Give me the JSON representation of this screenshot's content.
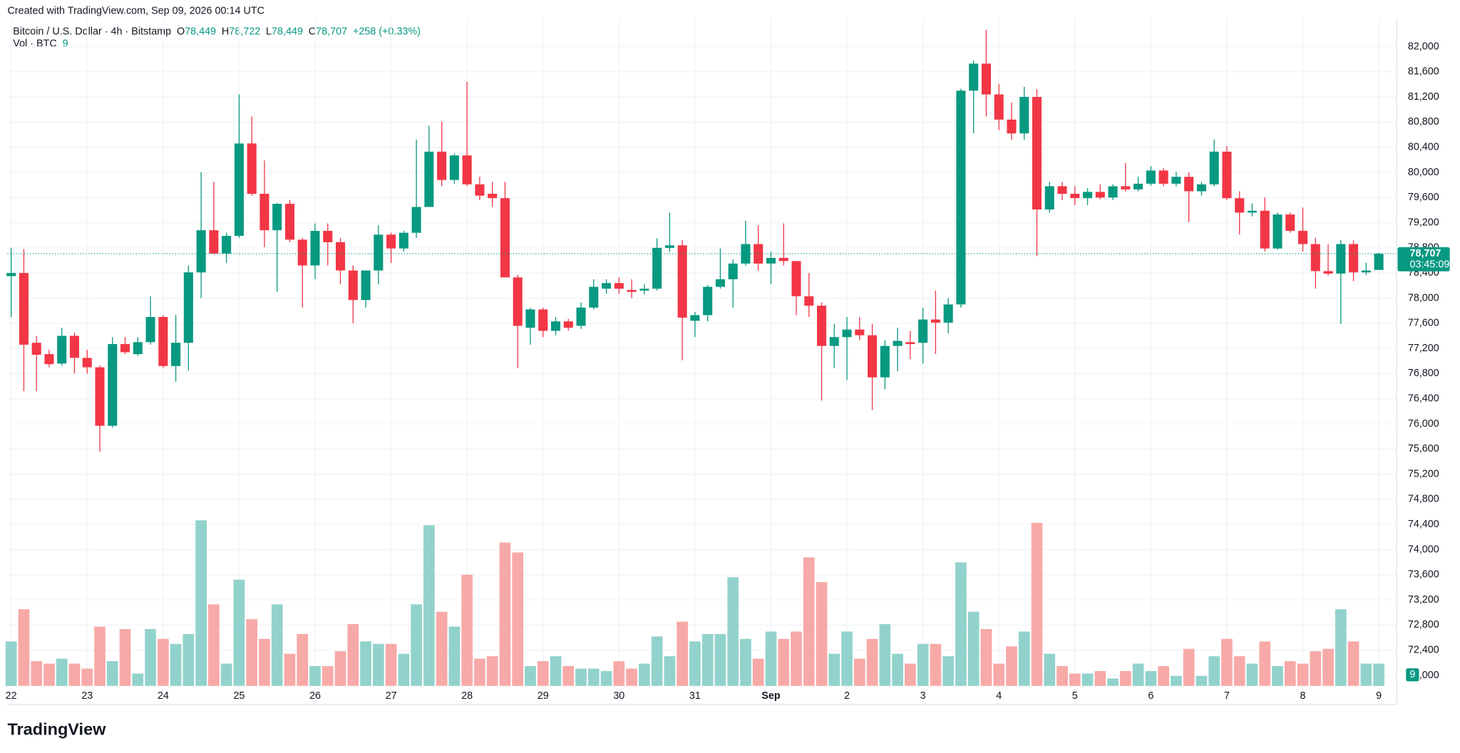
{
  "meta": {
    "created": "Created with TradingView.com, Sep 09, 2026 00:14 UTC",
    "brand": "TradingView"
  },
  "chart_data": {
    "type": "candlestick",
    "title": "Bitcoin / U.S. Dollar · 4h · Bitstamp",
    "ohlc": [
      {
        "key": "O",
        "value": "78,449"
      },
      {
        "key": "H",
        "value": "78,722"
      },
      {
        "key": "L",
        "value": "78,449"
      },
      {
        "key": "C",
        "value": "78,707"
      }
    ],
    "change": "+258 (+0.33%)",
    "volume_title": "Vol · BTC",
    "last_label": "78,707",
    "countdown": "03:45:09",
    "up_color": "#089981",
    "down_color": "#f23645",
    "vol_up_color": "#92d2cc",
    "vol_down_color": "#f7a9a7",
    "categories": [
      "22",
      null,
      null,
      null,
      null,
      null,
      "23",
      null,
      null,
      null,
      null,
      null,
      "24",
      null,
      null,
      null,
      null,
      null,
      "25",
      null,
      null,
      null,
      null,
      null,
      "26",
      null,
      null,
      null,
      null,
      null,
      "27",
      null,
      null,
      null,
      null,
      null,
      "28",
      null,
      null,
      null,
      null,
      null,
      "29",
      null,
      null,
      null,
      null,
      null,
      "30",
      null,
      null,
      null,
      null,
      null,
      "31",
      null,
      null,
      null,
      null,
      null,
      "Sep",
      null,
      null,
      null,
      null,
      null,
      "2",
      null,
      null,
      null,
      null,
      null,
      "3",
      null,
      null,
      null,
      null,
      null,
      "4",
      null,
      null,
      null,
      null,
      null,
      "5",
      null,
      null,
      null,
      null,
      null,
      "6",
      null,
      null,
      null,
      null,
      null,
      "7",
      null,
      null,
      null,
      null,
      null,
      "8",
      null,
      null,
      null,
      null,
      null,
      "9"
    ],
    "open": [
      78350,
      78400,
      77290,
      77110,
      76960,
      77400,
      77050,
      76900,
      75970,
      77270,
      77110,
      77300,
      77700,
      76920,
      77290,
      78410,
      79080,
      78710,
      78990,
      80460,
      79660,
      79080,
      79500,
      78930,
      78520,
      79070,
      78890,
      78440,
      77970,
      78440,
      79010,
      78790,
      79040,
      79450,
      80330,
      79880,
      80270,
      79810,
      79660,
      79590,
      78330,
      77530,
      77820,
      77480,
      77630,
      77560,
      77850,
      78150,
      78240,
      78130,
      78120,
      78150,
      78800,
      78840,
      77640,
      77730,
      78180,
      78300,
      78550,
      78860,
      78550,
      78640,
      78590,
      78030,
      77880,
      77240,
      77380,
      77500,
      77410,
      76740,
      77240,
      77300,
      77290,
      77660,
      77610,
      77900,
      81300,
      81730,
      81240,
      80840,
      80620,
      81200,
      79410,
      79780,
      79660,
      79590,
      79690,
      79600,
      79780,
      79730,
      79820,
      80030,
      79820,
      79930,
      79700,
      79810,
      80330,
      79590,
      79360,
      79390,
      78790,
      79330,
      79070,
      78860,
      78430,
      78390,
      78860,
      78410,
      78449
    ],
    "high": [
      78800,
      78780,
      77400,
      77180,
      77530,
      77450,
      77180,
      76930,
      77380,
      77380,
      77380,
      78030,
      77730,
      77730,
      78520,
      80000,
      79850,
      79040,
      81240,
      80890,
      80190,
      79510,
      79560,
      78960,
      79190,
      79190,
      78960,
      78520,
      78440,
      79160,
      79040,
      79070,
      80520,
      80740,
      80810,
      80300,
      81440,
      79930,
      79850,
      79850,
      78370,
      77850,
      77850,
      77700,
      77670,
      77930,
      78300,
      78300,
      78330,
      78300,
      78220,
      78950,
      79360,
      78920,
      77780,
      78210,
      78790,
      78620,
      79230,
      79160,
      78740,
      79190,
      78590,
      78400,
      77930,
      77590,
      77700,
      77700,
      77590,
      77330,
      77530,
      77480,
      77850,
      78120,
      78000,
      81330,
      81780,
      82270,
      81410,
      81110,
      81360,
      81320,
      79850,
      79850,
      79780,
      79750,
      79810,
      79810,
      80150,
      79930,
      80100,
      80070,
      80010,
      80000,
      79850,
      80520,
      80420,
      79700,
      79510,
      79600,
      79360,
      79360,
      79440,
      78960,
      78860,
      78920,
      78920,
      78560,
      78722
    ],
    "low": [
      77700,
      76520,
      76520,
      76900,
      76930,
      76800,
      76800,
      75560,
      75940,
      77110,
      77080,
      77260,
      76890,
      76670,
      76850,
      78000,
      78700,
      78560,
      78960,
      79630,
      78810,
      78100,
      78890,
      77850,
      78300,
      78520,
      78220,
      77600,
      77850,
      78220,
      78560,
      78740,
      78960,
      79450,
      79780,
      79820,
      79780,
      79560,
      79450,
      78330,
      76890,
      77260,
      77380,
      77410,
      77480,
      77510,
      77820,
      78070,
      78070,
      78000,
      78060,
      78120,
      78740,
      77010,
      77380,
      77630,
      78150,
      77850,
      78520,
      78440,
      78220,
      78520,
      77730,
      77700,
      76370,
      76890,
      76700,
      77330,
      76220,
      76550,
      76840,
      77030,
      76960,
      77110,
      77440,
      77850,
      80620,
      80890,
      80670,
      80520,
      80520,
      78670,
      79360,
      79560,
      79480,
      79480,
      79570,
      79560,
      79700,
      79700,
      79790,
      79780,
      79780,
      79210,
      79630,
      79780,
      79560,
      79010,
      79300,
      78740,
      78770,
      79040,
      78740,
      78150,
      78360,
      77590,
      78270,
      78370,
      78449
    ],
    "close": [
      78400,
      77260,
      77100,
      76950,
      77400,
      77050,
      76900,
      75970,
      77270,
      77140,
      77300,
      77700,
      76920,
      77290,
      78410,
      79080,
      78710,
      78990,
      80460,
      79660,
      79080,
      79500,
      78930,
      78520,
      79070,
      78890,
      78440,
      77970,
      78440,
      79010,
      78790,
      79040,
      79450,
      80330,
      79880,
      80270,
      79810,
      79630,
      79590,
      78330,
      77560,
      77820,
      77480,
      77630,
      77530,
      77850,
      78180,
      78240,
      78150,
      78100,
      78150,
      78800,
      78840,
      77690,
      77730,
      78180,
      78300,
      78550,
      78860,
      78550,
      78640,
      78590,
      78030,
      77880,
      77240,
      77380,
      77500,
      77410,
      76740,
      77240,
      77320,
      77270,
      77660,
      77610,
      77900,
      81300,
      81730,
      81240,
      80840,
      80620,
      81200,
      79410,
      79780,
      79660,
      79590,
      79690,
      79600,
      79780,
      79730,
      79820,
      80030,
      79820,
      79930,
      79700,
      79810,
      80330,
      79590,
      79360,
      79390,
      78790,
      79330,
      79070,
      78860,
      78430,
      78390,
      78860,
      78410,
      78440,
      78707
    ],
    "volume": [
      18,
      31,
      10,
      9,
      11,
      9,
      7,
      24,
      10,
      23,
      5,
      23,
      19,
      17,
      21,
      67,
      33,
      9,
      43,
      27,
      19,
      33,
      13,
      21,
      8,
      8,
      14,
      25,
      18,
      17,
      17,
      13,
      33,
      65,
      30,
      24,
      45,
      11,
      12,
      58,
      54,
      8,
      10,
      12,
      8,
      7,
      7,
      6,
      10,
      7,
      9,
      20,
      12,
      26,
      18,
      21,
      21,
      44,
      19,
      11,
      22,
      19,
      22,
      52,
      42,
      13,
      22,
      11,
      19,
      25,
      13,
      9,
      17,
      17,
      12,
      50,
      30,
      23,
      9,
      16,
      22,
      66,
      13,
      8,
      5,
      5,
      6,
      3,
      6,
      9,
      6,
      8,
      4,
      15,
      4,
      12,
      19,
      12,
      9,
      18,
      8,
      10,
      9,
      14,
      15,
      31,
      18,
      9,
      9
    ],
    "ylim": [
      71833,
      82444
    ],
    "vol_ylim": [
      0,
      270
    ],
    "yticks": [
      {
        "value": 72000,
        "label": "72,000"
      },
      {
        "value": 72400,
        "label": "72,400"
      },
      {
        "value": 72800,
        "label": "72,800"
      },
      {
        "value": 73200,
        "label": "73,200"
      },
      {
        "value": 73600,
        "label": "73,600"
      },
      {
        "value": 74000,
        "label": "74,000"
      },
      {
        "value": 74400,
        "label": "74,400"
      },
      {
        "value": 74800,
        "label": "74,800"
      },
      {
        "value": 75200,
        "label": "75,200"
      },
      {
        "value": 75600,
        "label": "75,600"
      },
      {
        "value": 76000,
        "label": "76,000"
      },
      {
        "value": 76400,
        "label": "76,400"
      },
      {
        "value": 76800,
        "label": "76,800"
      },
      {
        "value": 77200,
        "label": "77,200"
      },
      {
        "value": 77600,
        "label": "77,600"
      },
      {
        "value": 78000,
        "label": "78,000"
      },
      {
        "value": 78400,
        "label": "78,400"
      },
      {
        "value": 78800,
        "label": "78,800"
      },
      {
        "value": 79200,
        "label": "79,200"
      },
      {
        "value": 79600,
        "label": "79,600"
      },
      {
        "value": 80000,
        "label": "80,000"
      },
      {
        "value": 80400,
        "label": "80,400"
      },
      {
        "value": 80800,
        "label": "80,800"
      },
      {
        "value": 81200,
        "label": "81,200"
      },
      {
        "value": 81600,
        "label": "81,600"
      },
      {
        "value": 82000,
        "label": "82,000"
      }
    ],
    "grid": true
  }
}
